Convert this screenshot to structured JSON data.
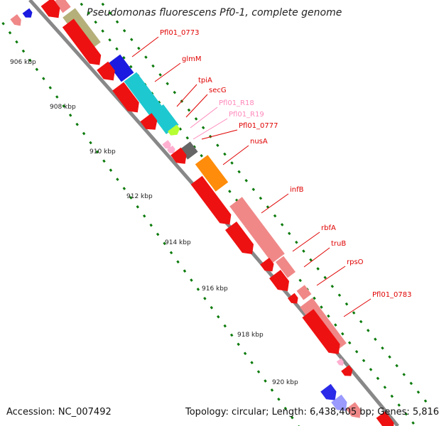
{
  "title": "Pseudomonas fluorescens Pf0-1, complete genome",
  "footer": {
    "accession": "Accession: NC_007492",
    "summary": "Topology: circular; Length: 6,438,405 bp; Genes: 5,816"
  },
  "colors": {
    "backbone": "#888888",
    "tick": "#0a7a0a",
    "label_red": "#e00000",
    "label_pink": "#ff88bb"
  },
  "scale_labels": [
    "906 kbp",
    "908 kbp",
    "910 kbp",
    "912 kbp",
    "914 kbp",
    "916 kbp",
    "918 kbp",
    "920 kbp"
  ],
  "gene_labels": [
    {
      "text": "Pfl01_0773",
      "kind": "cds"
    },
    {
      "text": "glmM",
      "kind": "cds"
    },
    {
      "text": "tpiA",
      "kind": "cds"
    },
    {
      "text": "secG",
      "kind": "cds"
    },
    {
      "text": "Pfl01_R18",
      "kind": "rna"
    },
    {
      "text": "Pfl01_R19",
      "kind": "rna"
    },
    {
      "text": "Pfl01_0777",
      "kind": "cds"
    },
    {
      "text": "nusA",
      "kind": "cds"
    },
    {
      "text": "infB",
      "kind": "cds"
    },
    {
      "text": "rbfA",
      "kind": "cds"
    },
    {
      "text": "truB",
      "kind": "cds"
    },
    {
      "text": "rpsO",
      "kind": "cds"
    },
    {
      "text": "Pfl01_0783",
      "kind": "cds"
    }
  ]
}
